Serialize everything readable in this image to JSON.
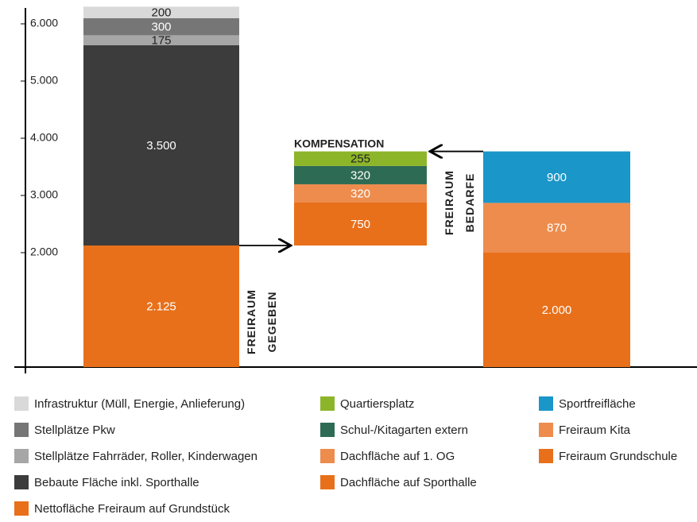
{
  "chart_data": {
    "type": "bar",
    "stacked": true,
    "categories": [
      null,
      null,
      null
    ],
    "ylim": [
      0,
      6250
    ],
    "yticks": [
      {
        "value": 2000,
        "label": "2.000"
      },
      {
        "value": 3000,
        "label": "3.000"
      },
      {
        "value": 4000,
        "label": "4.000"
      },
      {
        "value": 5000,
        "label": "5.000"
      },
      {
        "value": 6000,
        "label": "6.000"
      }
    ],
    "annotations": [
      {
        "text": [
          "FREIRAUM",
          "GEGEBEN"
        ]
      },
      {
        "text": [
          "FREIRAUM",
          "BEDARFE"
        ]
      },
      {
        "text": [
          "KOMPENSATION"
        ]
      }
    ],
    "series": [
      {
        "name": "Infrastruktur (Müll, Energie, Anlieferung)",
        "color": "#d9d9d9",
        "values": [
          200,
          null,
          null
        ]
      },
      {
        "name": "Stellplätze Pkw",
        "color": "#767676",
        "values": [
          300,
          null,
          null
        ]
      },
      {
        "name": "Stellplätze Fahrräder, Roller, Kinderwagen",
        "color": "#a6a6a6",
        "values": [
          175,
          null,
          null
        ]
      },
      {
        "name": "Bebaute Fläche inkl. Sporthalle",
        "color": "#3c3c3c",
        "values": [
          3500,
          null,
          null
        ],
        "value_labels": [
          "3.500",
          null,
          null
        ]
      },
      {
        "name": "Nettofläche Freiraum auf Grundstück",
        "color": "#e8701a",
        "values": [
          2125,
          null,
          null
        ],
        "value_labels": [
          "2.125",
          null,
          null
        ]
      },
      {
        "name": "Quartiersplatz",
        "color": "#8db52a",
        "values": [
          null,
          255,
          null
        ]
      },
      {
        "name": "Schul-/Kitagarten extern",
        "color": "#2e6b55",
        "values": [
          null,
          320,
          null
        ]
      },
      {
        "name": "Dachfläche auf 1. OG",
        "color": "#ed8c4d",
        "values": [
          null,
          320,
          null
        ]
      },
      {
        "name": "Dachfläche auf Sporthalle",
        "color": "#e8701a",
        "values": [
          null,
          750,
          null
        ]
      },
      {
        "name": "Sportfreifläche",
        "color": "#1a96c9",
        "values": [
          null,
          null,
          900
        ]
      },
      {
        "name": "Freiraum Kita",
        "color": "#ed8c4d",
        "values": [
          null,
          null,
          870
        ]
      },
      {
        "name": "Freiraum Grundschule",
        "color": "#e8701a",
        "values": [
          null,
          null,
          2000
        ],
        "value_labels": [
          null,
          null,
          "2.000"
        ]
      }
    ]
  }
}
